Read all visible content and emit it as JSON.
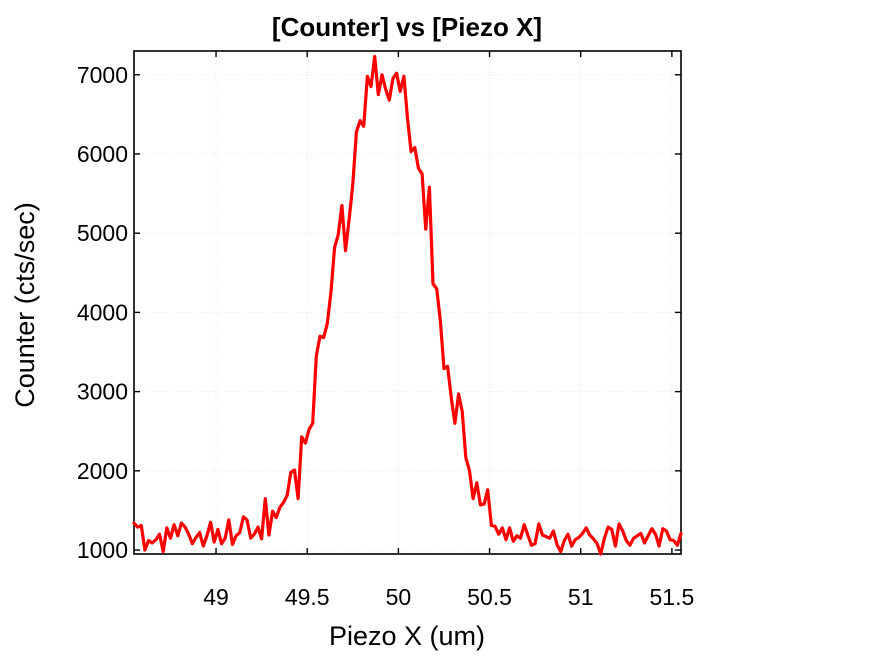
{
  "chart_data": {
    "type": "line",
    "title": "[Counter] vs [Piezo X]",
    "xlabel": "Piezo X (um)",
    "ylabel": "Counter (cts/sec)",
    "xlim": [
      48.55,
      51.55
    ],
    "ylim": [
      950,
      7300
    ],
    "xticks": [
      49,
      49.5,
      50,
      50.5,
      51,
      51.5
    ],
    "xtick_labels": [
      "49",
      "49.5",
      "50",
      "50.5",
      "51",
      "51.5"
    ],
    "yticks": [
      1000,
      2000,
      3000,
      4000,
      5000,
      6000,
      7000
    ],
    "ytick_labels": [
      "1000",
      "2000",
      "3000",
      "4000",
      "5000",
      "6000",
      "7000"
    ],
    "grid": true,
    "series": [
      {
        "color": "#ff0000",
        "x": [
          48.55,
          48.57,
          48.59,
          48.61,
          48.63,
          48.65,
          48.67,
          48.69,
          48.71,
          48.73,
          48.75,
          48.77,
          48.79,
          48.81,
          48.83,
          48.85,
          48.87,
          48.89,
          48.91,
          48.93,
          48.95,
          48.97,
          48.99,
          49.01,
          49.03,
          49.05,
          49.07,
          49.09,
          49.11,
          49.13,
          49.15,
          49.17,
          49.19,
          49.21,
          49.23,
          49.25,
          49.27,
          49.29,
          49.31,
          49.33,
          49.35,
          49.37,
          49.39,
          49.41,
          49.43,
          49.45,
          49.47,
          49.49,
          49.51,
          49.53,
          49.55,
          49.57,
          49.59,
          49.61,
          49.63,
          49.65,
          49.67,
          49.69,
          49.71,
          49.73,
          49.75,
          49.77,
          49.79,
          49.81,
          49.83,
          49.85,
          49.87,
          49.89,
          49.91,
          49.93,
          49.95,
          49.97,
          49.99,
          50.01,
          50.03,
          50.05,
          50.07,
          50.09,
          50.11,
          50.13,
          50.15,
          50.17,
          50.19,
          50.21,
          50.23,
          50.25,
          50.27,
          50.29,
          50.31,
          50.33,
          50.35,
          50.37,
          50.39,
          50.41,
          50.43,
          50.45,
          50.47,
          50.49,
          50.51,
          50.53,
          50.55,
          50.57,
          50.59,
          50.61,
          50.63,
          50.65,
          50.67,
          50.69,
          50.71,
          50.73,
          50.75,
          50.77,
          50.79,
          50.81,
          50.83,
          50.85,
          50.87,
          50.89,
          50.91,
          50.93,
          50.95,
          50.97,
          50.99,
          51.01,
          51.03,
          51.05,
          51.07,
          51.09,
          51.11,
          51.13,
          51.15,
          51.17,
          51.19,
          51.21,
          51.23,
          51.25,
          51.27,
          51.29,
          51.31,
          51.33,
          51.35,
          51.37,
          51.39,
          51.41,
          51.43,
          51.45,
          51.47,
          51.49,
          51.51,
          51.53,
          51.55
        ],
        "values": [
          1340,
          1290,
          1310,
          1000,
          1120,
          1090,
          1130,
          1200,
          980,
          1280,
          1150,
          1320,
          1180,
          1340,
          1290,
          1200,
          1080,
          1160,
          1220,
          1050,
          1180,
          1350,
          1100,
          1260,
          1080,
          1150,
          1380,
          1070,
          1180,
          1220,
          1420,
          1380,
          1150,
          1200,
          1290,
          1140,
          1650,
          1190,
          1490,
          1410,
          1540,
          1600,
          1690,
          1980,
          2010,
          1650,
          2430,
          2350,
          2520,
          2600,
          3450,
          3700,
          3680,
          3860,
          4250,
          4820,
          4980,
          5350,
          4780,
          5180,
          5620,
          6280,
          6420,
          6350,
          6980,
          6850,
          7230,
          6750,
          7000,
          6820,
          6680,
          6950,
          7020,
          6790,
          6980,
          6450,
          6030,
          6080,
          5820,
          5750,
          5050,
          5580,
          4360,
          4300,
          3900,
          3290,
          3320,
          2920,
          2600,
          2970,
          2750,
          2170,
          2000,
          1650,
          1850,
          1570,
          1580,
          1760,
          1310,
          1300,
          1200,
          1280,
          1130,
          1280,
          1110,
          1180,
          1150,
          1320,
          1190,
          1060,
          1080,
          1330,
          1190,
          1170,
          1150,
          1240,
          1070,
          980,
          1120,
          1200,
          1050,
          1130,
          1160,
          1210,
          1280,
          1190,
          1140,
          1080,
          950,
          1150,
          1290,
          1260,
          1050,
          1330,
          1240,
          1120,
          1060,
          1150,
          1180,
          1210,
          1090,
          1180,
          1270,
          1200,
          1050,
          1270,
          1240,
          1130,
          1120,
          1060,
          1210
        ]
      }
    ]
  }
}
